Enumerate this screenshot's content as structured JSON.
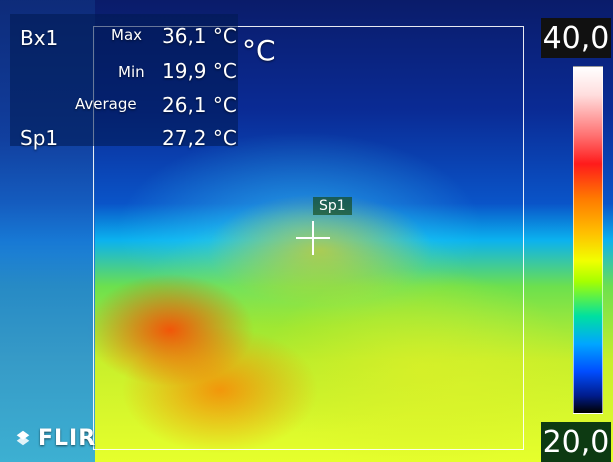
{
  "overlay": {
    "box_label": "Bx1",
    "measurements": {
      "max_label": "Max",
      "min_label": "Min",
      "avg_label": "Average",
      "max_value": "36,1 °C",
      "min_value": "19,9 °C",
      "avg_value": "26,1 °C"
    },
    "spot_label_left": "Sp1",
    "spot_value": "27,2 °C",
    "unit_tail": "°C",
    "spot_marker_label": "Sp1"
  },
  "palette": {
    "max": "40,0",
    "min": "20,0"
  },
  "logo": {
    "text": "FLIR",
    "icon": "flir-logo-icon"
  }
}
